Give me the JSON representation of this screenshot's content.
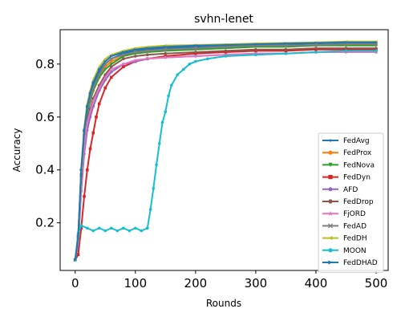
{
  "chart_data": {
    "type": "line",
    "title": "svhn-lenet",
    "xlabel": "Rounds",
    "ylabel": "Accuracy",
    "xlim": [
      -25,
      520
    ],
    "ylim": [
      0.02,
      0.93
    ],
    "xticks": [
      0,
      100,
      200,
      300,
      400,
      500
    ],
    "yticks": [
      0.2,
      0.4,
      0.6,
      0.8
    ],
    "grid": false,
    "legend_position": "lower-right",
    "series": [
      {
        "name": "FedAvg",
        "color": "#1f77b4",
        "marker": "point",
        "x": [
          0,
          5,
          10,
          15,
          20,
          25,
          30,
          40,
          50,
          60,
          80,
          100,
          120,
          150,
          200,
          250,
          300,
          350,
          400,
          450,
          500
        ],
        "y": [
          0.06,
          0.15,
          0.4,
          0.55,
          0.64,
          0.68,
          0.72,
          0.77,
          0.8,
          0.82,
          0.84,
          0.85,
          0.855,
          0.86,
          0.865,
          0.87,
          0.875,
          0.875,
          0.878,
          0.88,
          0.88
        ]
      },
      {
        "name": "FedProx",
        "color": "#ff7f0e",
        "marker": "circle",
        "x": [
          0,
          5,
          10,
          15,
          20,
          25,
          30,
          40,
          50,
          60,
          80,
          100,
          120,
          150,
          200,
          250,
          300,
          350,
          400,
          450,
          500
        ],
        "y": [
          0.06,
          0.14,
          0.38,
          0.53,
          0.62,
          0.66,
          0.7,
          0.75,
          0.79,
          0.81,
          0.83,
          0.845,
          0.85,
          0.855,
          0.86,
          0.865,
          0.87,
          0.87,
          0.872,
          0.875,
          0.875
        ]
      },
      {
        "name": "FedNova",
        "color": "#2ca02c",
        "marker": "triangle-down",
        "x": [
          0,
          5,
          10,
          15,
          20,
          25,
          30,
          40,
          50,
          60,
          80,
          100,
          120,
          150,
          200,
          250,
          300,
          350,
          400,
          450,
          500
        ],
        "y": [
          0.06,
          0.14,
          0.37,
          0.52,
          0.61,
          0.66,
          0.7,
          0.75,
          0.78,
          0.8,
          0.83,
          0.84,
          0.845,
          0.85,
          0.855,
          0.86,
          0.865,
          0.865,
          0.87,
          0.87,
          0.87
        ]
      },
      {
        "name": "FedDyn",
        "color": "#d62728",
        "marker": "square",
        "x": [
          0,
          5,
          10,
          15,
          20,
          25,
          30,
          35,
          40,
          50,
          60,
          80,
          100,
          120,
          150,
          200,
          250,
          300,
          350,
          400,
          450,
          500
        ],
        "y": [
          0.06,
          0.08,
          0.18,
          0.3,
          0.4,
          0.48,
          0.54,
          0.6,
          0.65,
          0.71,
          0.75,
          0.79,
          0.81,
          0.82,
          0.83,
          0.84,
          0.845,
          0.85,
          0.85,
          0.855,
          0.855,
          0.855
        ]
      },
      {
        "name": "AFD",
        "color": "#9467bd",
        "marker": "pentagon",
        "x": [
          0,
          5,
          10,
          15,
          20,
          25,
          30,
          40,
          50,
          60,
          80,
          100,
          120,
          150,
          200,
          250,
          300,
          350,
          400,
          450,
          500
        ],
        "y": [
          0.06,
          0.12,
          0.32,
          0.46,
          0.55,
          0.6,
          0.64,
          0.7,
          0.74,
          0.77,
          0.8,
          0.81,
          0.82,
          0.825,
          0.83,
          0.835,
          0.84,
          0.84,
          0.845,
          0.845,
          0.845
        ]
      },
      {
        "name": "FedDrop",
        "color": "#8c564b",
        "marker": "hexagon",
        "x": [
          0,
          5,
          10,
          15,
          20,
          25,
          30,
          40,
          50,
          60,
          80,
          100,
          120,
          150,
          200,
          250,
          300,
          350,
          400,
          450,
          500
        ],
        "y": [
          0.06,
          0.13,
          0.35,
          0.5,
          0.59,
          0.63,
          0.67,
          0.72,
          0.76,
          0.79,
          0.82,
          0.83,
          0.835,
          0.84,
          0.845,
          0.85,
          0.855,
          0.855,
          0.86,
          0.86,
          0.86
        ]
      },
      {
        "name": "FjORD",
        "color": "#e377c2",
        "marker": "star",
        "x": [
          0,
          5,
          10,
          15,
          20,
          25,
          30,
          40,
          50,
          60,
          80,
          100,
          120,
          150,
          200,
          250,
          300,
          350,
          400,
          450,
          500
        ],
        "y": [
          0.06,
          0.13,
          0.34,
          0.49,
          0.58,
          0.62,
          0.66,
          0.71,
          0.75,
          0.78,
          0.8,
          0.815,
          0.82,
          0.825,
          0.83,
          0.835,
          0.84,
          0.84,
          0.845,
          0.845,
          0.845
        ]
      },
      {
        "name": "FedAD",
        "color": "#7f7f7f",
        "marker": "x",
        "x": [
          0,
          5,
          10,
          15,
          20,
          25,
          30,
          40,
          50,
          60,
          80,
          100,
          120,
          150,
          200,
          250,
          300,
          350,
          400,
          450,
          500
        ],
        "y": [
          0.06,
          0.14,
          0.38,
          0.54,
          0.63,
          0.67,
          0.71,
          0.76,
          0.8,
          0.82,
          0.835,
          0.845,
          0.85,
          0.855,
          0.86,
          0.865,
          0.87,
          0.87,
          0.872,
          0.875,
          0.875
        ]
      },
      {
        "name": "FedDH",
        "color": "#bcbd22",
        "marker": "triangle-left",
        "x": [
          0,
          5,
          10,
          15,
          20,
          25,
          30,
          40,
          50,
          60,
          80,
          100,
          120,
          150,
          200,
          250,
          300,
          350,
          400,
          450,
          500
        ],
        "y": [
          0.06,
          0.15,
          0.41,
          0.56,
          0.65,
          0.7,
          0.74,
          0.79,
          0.82,
          0.835,
          0.85,
          0.86,
          0.865,
          0.87,
          0.872,
          0.875,
          0.878,
          0.88,
          0.882,
          0.885,
          0.885
        ]
      },
      {
        "name": "MOON",
        "color": "#17becf",
        "marker": "circle",
        "x": [
          0,
          5,
          10,
          20,
          30,
          40,
          50,
          60,
          70,
          80,
          90,
          100,
          110,
          120,
          125,
          130,
          135,
          140,
          145,
          150,
          155,
          160,
          170,
          180,
          190,
          200,
          220,
          250,
          300,
          350,
          400,
          450,
          500
        ],
        "y": [
          0.06,
          0.16,
          0.19,
          0.18,
          0.17,
          0.18,
          0.17,
          0.18,
          0.17,
          0.18,
          0.17,
          0.18,
          0.17,
          0.18,
          0.25,
          0.33,
          0.42,
          0.5,
          0.58,
          0.62,
          0.68,
          0.72,
          0.76,
          0.78,
          0.8,
          0.81,
          0.82,
          0.83,
          0.835,
          0.84,
          0.845,
          0.85,
          0.85
        ]
      },
      {
        "name": "FedDHAD",
        "color": "#1f77b4",
        "marker": "triangle-right",
        "x": [
          0,
          5,
          10,
          15,
          20,
          25,
          30,
          40,
          50,
          60,
          80,
          100,
          120,
          150,
          200,
          250,
          300,
          350,
          400,
          450,
          500
        ],
        "y": [
          0.06,
          0.15,
          0.4,
          0.55,
          0.64,
          0.69,
          0.73,
          0.78,
          0.81,
          0.83,
          0.845,
          0.855,
          0.86,
          0.865,
          0.87,
          0.872,
          0.875,
          0.878,
          0.88,
          0.882,
          0.882
        ]
      }
    ]
  }
}
